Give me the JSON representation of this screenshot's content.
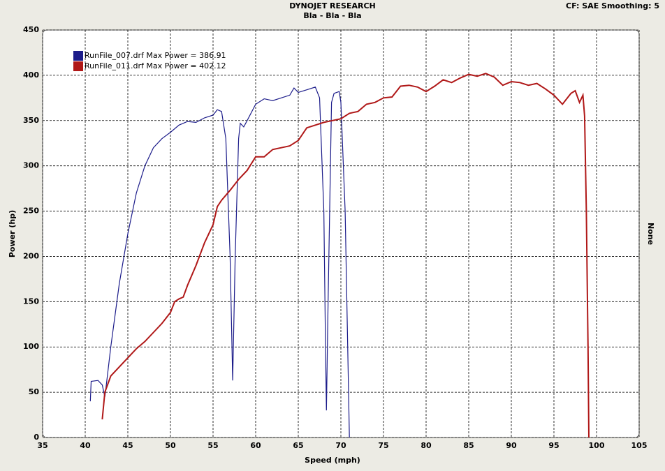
{
  "chart_data": {
    "type": "line",
    "title": "DYNOJET RESEARCH",
    "subtitle": "Bla - Bla - Bla",
    "corner_note": "CF: SAE  Smoothing: 5",
    "right_axis_label": "None",
    "x_label": "Speed (mph)",
    "y_label": "Power (hp)",
    "xlim": [
      35,
      105
    ],
    "xticks": [
      35,
      40,
      45,
      50,
      55,
      60,
      65,
      70,
      75,
      80,
      85,
      90,
      95,
      100,
      105
    ],
    "ylim": [
      0,
      450
    ],
    "yticks": [
      0,
      50,
      100,
      150,
      200,
      250,
      300,
      350,
      400,
      450
    ],
    "grid": true,
    "series": [
      {
        "name": "RunFile_007.drf Max Power = 386.91",
        "color": "#1c1c8a",
        "x": [
          40.6,
          40.7,
          41.5,
          42,
          42.3,
          42.5,
          43,
          44,
          45,
          46,
          47,
          48,
          49,
          50,
          51,
          52,
          53,
          54,
          55,
          55.5,
          56,
          56.5,
          57,
          57.3,
          57.6,
          58,
          58.2,
          58.6,
          59,
          60,
          61,
          62,
          63,
          64,
          64.5,
          65,
          66,
          67,
          67.5,
          68,
          68.2,
          68.3,
          68.5,
          68.9,
          69.2,
          69.8,
          70,
          70.5,
          71
        ],
        "values": [
          40,
          62,
          63,
          58,
          45,
          60,
          100,
          170,
          225,
          270,
          300,
          320,
          330,
          337,
          345,
          349,
          348,
          353,
          356,
          362,
          360,
          330,
          200,
          63,
          200,
          330,
          347,
          343,
          350,
          368,
          374,
          372,
          375,
          378,
          386,
          381,
          384,
          387,
          375,
          250,
          100,
          30,
          150,
          370,
          380,
          382,
          370,
          250,
          0
        ]
      },
      {
        "name": "RunFile_011.drf Max Power = 402.12",
        "color": "#b01818",
        "x": [
          42,
          42.3,
          43,
          44,
          45,
          46,
          47,
          48,
          49,
          50,
          50.5,
          51,
          51.5,
          52,
          53,
          54,
          55,
          55.5,
          56,
          57,
          58,
          59,
          60,
          61,
          62,
          63,
          64,
          65,
          66,
          67,
          68,
          69,
          70,
          71,
          72,
          73,
          74,
          75,
          76,
          77,
          78,
          79,
          80,
          81,
          82,
          83,
          84,
          85,
          86,
          87,
          88,
          89,
          90,
          91,
          92,
          93,
          94,
          95,
          96,
          97,
          97.5,
          98,
          98.4,
          98.6,
          98.8,
          99,
          99.1
        ],
        "values": [
          20,
          50,
          68,
          78,
          88,
          98,
          106,
          116,
          126,
          138,
          150,
          153,
          155,
          168,
          190,
          215,
          235,
          255,
          262,
          273,
          285,
          295,
          310,
          310,
          318,
          320,
          322,
          328,
          342,
          345,
          348,
          350,
          352,
          358,
          360,
          368,
          370,
          375,
          376,
          388,
          389,
          387,
          382,
          388,
          395,
          392,
          397,
          401,
          399,
          402,
          398,
          389,
          393,
          392,
          389,
          391,
          385,
          378,
          368,
          380,
          383,
          370,
          378,
          355,
          250,
          100,
          0
        ]
      }
    ]
  }
}
